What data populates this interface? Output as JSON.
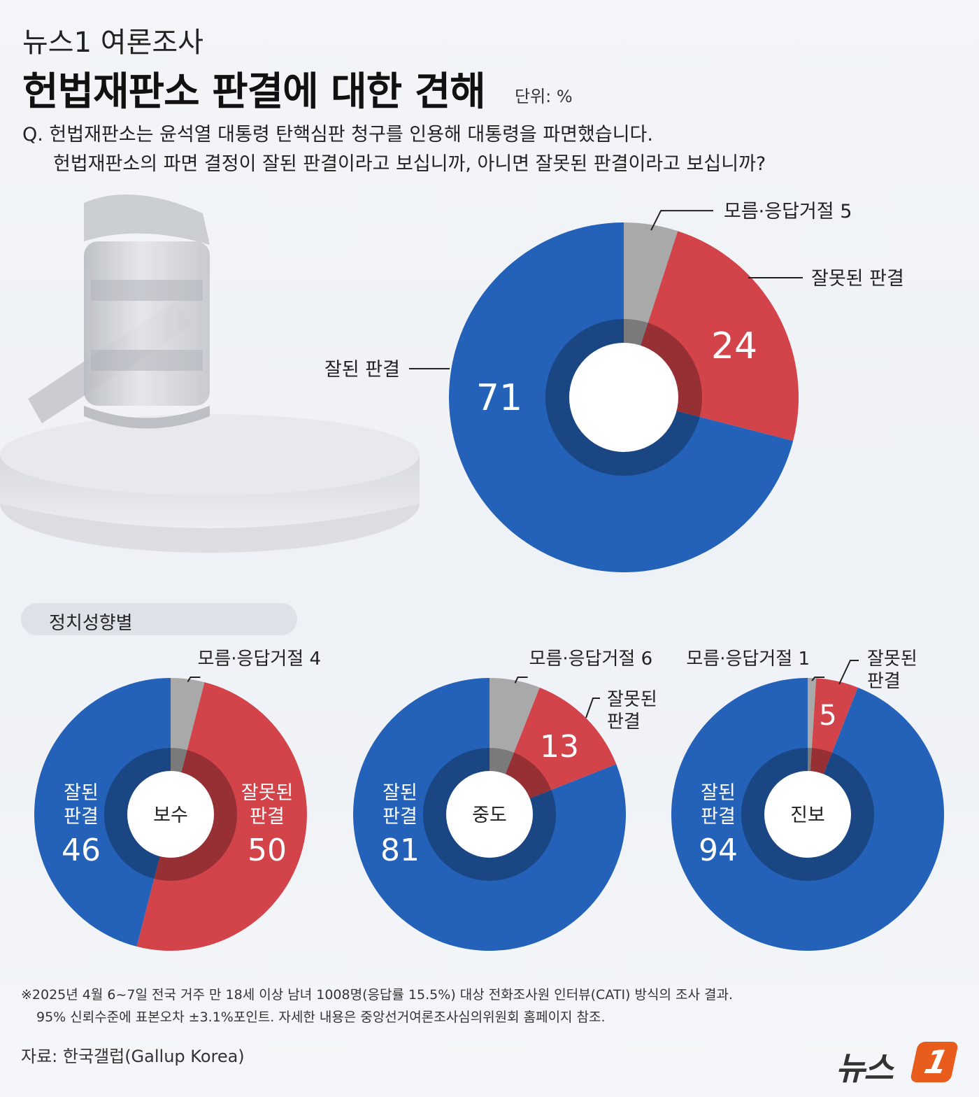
{
  "header": {
    "kicker": "뉴스1 여론조사",
    "title": "헌법재판소 판결에 대한 견해",
    "unit": "단위: %",
    "question_line1": "Q. 헌법재판소는 윤석열 대통령 탄핵심판 청구를 인용해 대통령을 파면했습니다.",
    "question_line2": "헌법재판소의 파면 결정이 잘된 판결이라고 보십니까, 아니면 잘못된 판결이라고 보십니까?"
  },
  "section_label": "정치성향별",
  "colors": {
    "good": "#2461b8",
    "bad": "#d2434a",
    "unknown": "#a9a9a9"
  },
  "chart_data": [
    {
      "type": "pie",
      "id": "overall",
      "categories": [
        "모름·응답거절",
        "잘못된 판결",
        "잘된 판결"
      ],
      "values": [
        5,
        24,
        71
      ],
      "labels": {
        "unknown": "모름·응답거절 5",
        "bad": "잘못된 판결",
        "good": "잘된 판결"
      },
      "value_labels": {
        "bad": "24",
        "good": "71"
      }
    },
    {
      "type": "pie",
      "id": "conservative",
      "center": "보수",
      "categories": [
        "모름·응답거절",
        "잘못된 판결",
        "잘된 판결"
      ],
      "values": [
        4,
        50,
        46
      ],
      "labels": {
        "unknown": "모름·응답거절 4",
        "bad_line1": "잘못된",
        "bad_line2": "판결",
        "good_line1": "잘된",
        "good_line2": "판결"
      },
      "value_labels": {
        "bad": "50",
        "good": "46"
      }
    },
    {
      "type": "pie",
      "id": "moderate",
      "center": "중도",
      "categories": [
        "모름·응답거절",
        "잘못된 판결",
        "잘된 판결"
      ],
      "values": [
        6,
        13,
        81
      ],
      "labels": {
        "unknown": "모름·응답거절 6",
        "bad_line1": "잘못된",
        "bad_line2": "판결",
        "good_line1": "잘된",
        "good_line2": "판결"
      },
      "value_labels": {
        "bad": "13",
        "good": "81"
      }
    },
    {
      "type": "pie",
      "id": "progressive",
      "center": "진보",
      "categories": [
        "모름·응답거절",
        "잘못된 판결",
        "잘된 판결"
      ],
      "values": [
        1,
        5,
        94
      ],
      "labels": {
        "unknown": "모름·응답거절 1",
        "bad_line1": "잘못된",
        "bad_line2": "판결",
        "good_line1": "잘된",
        "good_line2": "판결"
      },
      "value_labels": {
        "bad": "5",
        "good": "94"
      }
    }
  ],
  "footer": {
    "note_line1": "※2025년 4월 6~7일 전국 거주 만 18세 이상 남녀 1008명(응답률 15.5%) 대상 전화조사원 인터뷰(CATI) 방식의 조사 결과.",
    "note_line2": "95% 신뢰수준에 표본오차 ±3.1%포인트. 자세한 내용은 중앙선거여론조사심의위원회 홈페이지 참조.",
    "source": "자료: 한국갤럽(Gallup Korea)",
    "logo_text": "뉴스",
    "logo_badge": "1"
  }
}
